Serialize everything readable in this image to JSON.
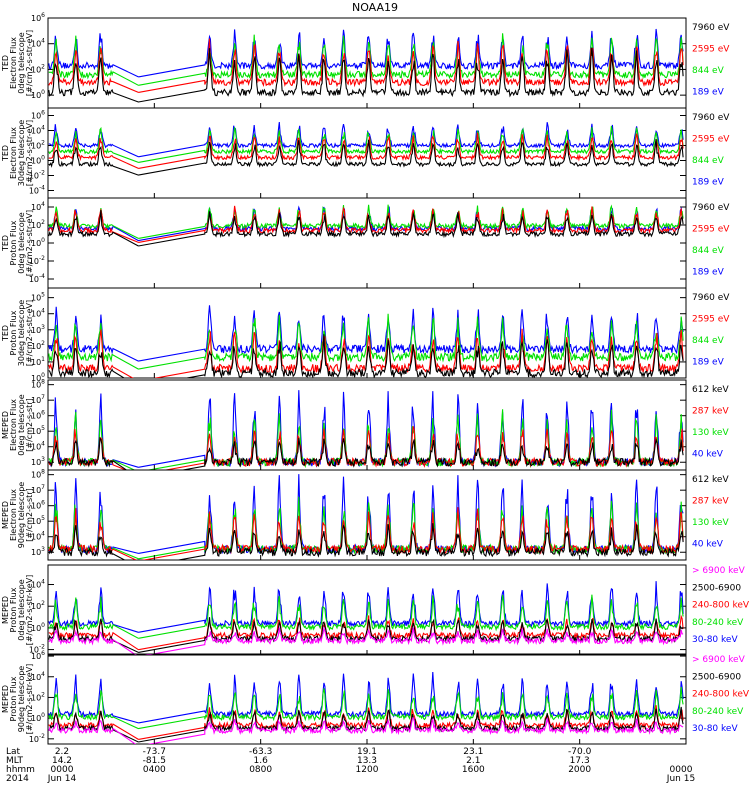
{
  "title": "NOAA19",
  "colors": {
    "black": "#000000",
    "red": "#ff0000",
    "green": "#00e000",
    "blue": "#0000ff",
    "magenta": "#ff00ff"
  },
  "chart_data": [
    {
      "type": "line",
      "panel": 1,
      "ylabel": [
        "TED",
        "Electron Flux",
        "0deg telescope",
        "[#/cm2-s-str-eV]"
      ],
      "yticks": [
        "10^6",
        "10^4",
        "10^2",
        "10^0"
      ],
      "ylim_exp": [
        -1,
        6
      ],
      "legend": [
        {
          "label": "7960 eV",
          "color": "black"
        },
        {
          "label": "2595 eV",
          "color": "red"
        },
        {
          "label": "844 eV",
          "color": "green"
        },
        {
          "label": "189 eV",
          "color": "blue"
        }
      ]
    },
    {
      "type": "line",
      "panel": 2,
      "ylabel": [
        "TED",
        "Electron Flux",
        "30deg telescope",
        "[#/cm2-s-str-eV]"
      ],
      "yticks": [
        "10^6",
        "10^4",
        "10^2",
        "10^0",
        "10^-2",
        "10^-4"
      ],
      "ylim_exp": [
        -5,
        7
      ],
      "legend": [
        {
          "label": "7960 eV",
          "color": "black"
        },
        {
          "label": "2595 eV",
          "color": "red"
        },
        {
          "label": "844 eV",
          "color": "green"
        },
        {
          "label": "189 eV",
          "color": "blue"
        }
      ]
    },
    {
      "type": "line",
      "panel": 3,
      "ylabel": [
        "TED",
        "Proton Flux",
        "0deg telescope",
        "[#/cm2-s-str-eV]"
      ],
      "yticks": [
        "10^4",
        "10^2",
        "10^0",
        "10^-2",
        "10^-4"
      ],
      "ylim_exp": [
        -5,
        5
      ],
      "legend": [
        {
          "label": "7960 eV",
          "color": "black"
        },
        {
          "label": "2595 eV",
          "color": "red"
        },
        {
          "label": "844 eV",
          "color": "green"
        },
        {
          "label": "189 eV",
          "color": "blue"
        }
      ]
    },
    {
      "type": "line",
      "panel": 4,
      "ylabel": [
        "TED",
        "Proton Flux",
        "30deg telescope",
        "[#/cm2-s-str-eV]"
      ],
      "yticks": [
        "10^5",
        "10^4",
        "10^3",
        "10^2",
        "10^1",
        "10^0"
      ],
      "ylim_exp": [
        0,
        5.6
      ],
      "legend": [
        {
          "label": "7960 eV",
          "color": "black"
        },
        {
          "label": "2595 eV",
          "color": "red"
        },
        {
          "label": "844 eV",
          "color": "green"
        },
        {
          "label": "189 eV",
          "color": "blue"
        }
      ]
    },
    {
      "type": "line",
      "panel": 5,
      "ylabel": [
        "MEPED",
        "Electron Flux",
        "0deg telescope",
        "[#/cm2-s-str]"
      ],
      "yticks": [
        "10^8",
        "10^7",
        "10^6",
        "10^5",
        "10^4",
        "10^3"
      ],
      "ylim_exp": [
        2.5,
        8.3
      ],
      "legend": [
        {
          "label": "612 keV",
          "color": "black"
        },
        {
          "label": "287 keV",
          "color": "red"
        },
        {
          "label": "130 keV",
          "color": "green"
        },
        {
          "label": "40 keV",
          "color": "blue"
        }
      ]
    },
    {
      "type": "line",
      "panel": 6,
      "ylabel": [
        "MEPED",
        "Electron Flux",
        "90deg telescope",
        "[#/cm2-s-str]"
      ],
      "yticks": [
        "10^8",
        "10^7",
        "10^6",
        "10^5",
        "10^4",
        "10^3"
      ],
      "ylim_exp": [
        2.5,
        8.3
      ],
      "legend": [
        {
          "label": "612 keV",
          "color": "black"
        },
        {
          "label": "287 keV",
          "color": "red"
        },
        {
          "label": "130 keV",
          "color": "green"
        },
        {
          "label": "40 keV",
          "color": "blue"
        }
      ]
    },
    {
      "type": "line",
      "panel": 7,
      "ylabel": [
        "MEPED",
        "Proton Flux",
        "0deg telescope",
        "[#/cm2-s-str-keV]"
      ],
      "yticks": [
        "10^4",
        "10^2",
        "10^0",
        "10^-2"
      ],
      "ylim_exp": [
        -2.5,
        5.8
      ],
      "legend": [
        {
          "label": "> 6900 keV",
          "color": "magenta"
        },
        {
          "label": "2500-6900",
          "color": "black"
        },
        {
          "label": "240-800 keV",
          "color": "red"
        },
        {
          "label": "80-240 keV",
          "color": "green"
        },
        {
          "label": "30-80 keV",
          "color": "blue"
        }
      ]
    },
    {
      "type": "line",
      "panel": 8,
      "ylabel": [
        "MEPED",
        "Proton Flux",
        "90deg telescope",
        "[#/cm2-s-str-keV]"
      ],
      "yticks": [
        "10^6",
        "10^4",
        "10^2",
        "10^0",
        "10^-2"
      ],
      "ylim_exp": [
        -2.5,
        6.2
      ],
      "legend": [
        {
          "label": "> 6900 keV",
          "color": "magenta"
        },
        {
          "label": "2500-6900",
          "color": "black"
        },
        {
          "label": "240-800 keV",
          "color": "red"
        },
        {
          "label": "80-240 keV",
          "color": "green"
        },
        {
          "label": "30-80 keV",
          "color": "blue"
        }
      ]
    }
  ],
  "x_axis": {
    "xlim_hours": [
      0,
      24
    ],
    "data_gap_hours": [
      2.45,
      5.9
    ],
    "row_labels": [
      "Lat",
      "MLT",
      "hhmm",
      "2014"
    ],
    "ticks": [
      {
        "hour": 0,
        "lat": "2.2",
        "mlt": "14.2",
        "hhmm": "0000",
        "date": "Jun 14"
      },
      {
        "hour": 4,
        "lat": "-73.7",
        "mlt": "-81.5",
        "hhmm": "0400",
        "date": ""
      },
      {
        "hour": 8,
        "lat": "-63.3",
        "mlt": "1.6",
        "hhmm": "0800",
        "date": ""
      },
      {
        "hour": 12,
        "lat": "19.1",
        "mlt": "13.3",
        "hhmm": "1200",
        "date": ""
      },
      {
        "hour": 16,
        "lat": "23.1",
        "mlt": "2.1",
        "hhmm": "1600",
        "date": ""
      },
      {
        "hour": 20,
        "lat": "-70.0",
        "mlt": "17.3",
        "hhmm": "2000",
        "date": ""
      },
      {
        "hour": 24,
        "lat": "",
        "mlt": "",
        "hhmm": "0000",
        "date": "Jun 15"
      }
    ]
  }
}
